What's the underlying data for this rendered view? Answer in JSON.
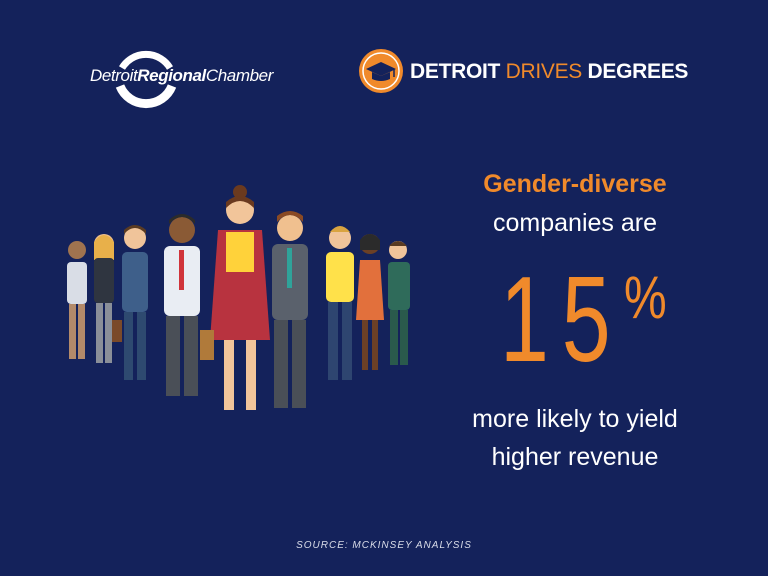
{
  "logos": {
    "chamber": {
      "part1": "Detroit",
      "part2": "Regional",
      "part3": "Chamber"
    },
    "degrees": {
      "part1": "DETROIT ",
      "part2": "DRIVES",
      "part3": " DEGREES",
      "icon": "graduation-cap-icon"
    }
  },
  "stat": {
    "heading": "Gender-diverse",
    "subheading": "companies are",
    "number": "15",
    "percent": "%",
    "line1": "more likely to yield",
    "line2": "higher revenue"
  },
  "source": "SOURCE: MCKINSEY ANALYSIS",
  "colors": {
    "background": "#14225b",
    "accent_orange": "#f08a2b",
    "text": "#ffffff"
  }
}
